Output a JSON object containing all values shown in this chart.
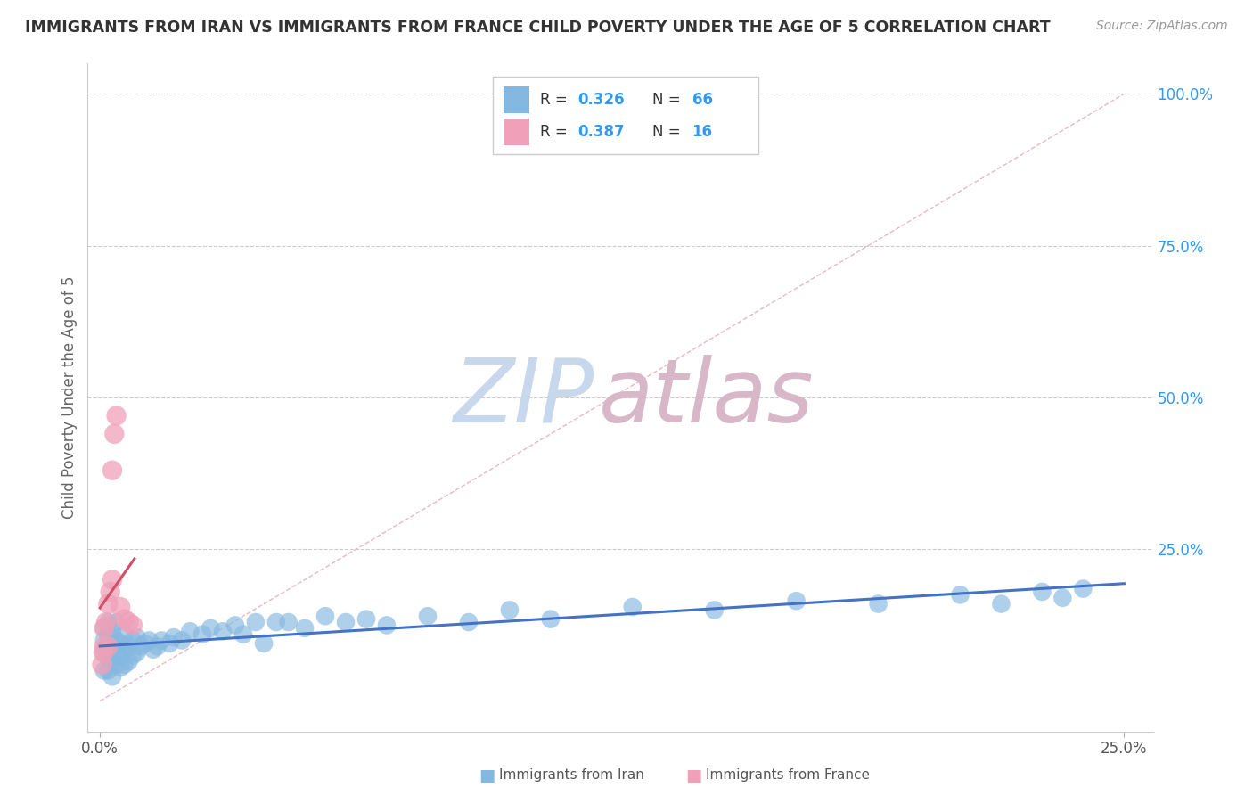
{
  "title": "IMMIGRANTS FROM IRAN VS IMMIGRANTS FROM FRANCE CHILD POVERTY UNDER THE AGE OF 5 CORRELATION CHART",
  "source": "Source: ZipAtlas.com",
  "xlabel_iran": "Immigrants from Iran",
  "xlabel_france": "Immigrants from France",
  "ylabel": "Child Poverty Under the Age of 5",
  "iran_R": 0.326,
  "iran_N": 66,
  "france_R": 0.387,
  "france_N": 16,
  "iran_color": "#85b8e0",
  "france_color": "#f0a0b8",
  "iran_line_color": "#4472c4",
  "france_line_color": "#d0506a",
  "diag_color": "#e8b0bc",
  "watermark_zip_color": "#c8d8ec",
  "watermark_atlas_color": "#d8b8c8",
  "iran_scatter_x": [
    0.001,
    0.001,
    0.001,
    0.001,
    0.002,
    0.002,
    0.002,
    0.002,
    0.002,
    0.003,
    0.003,
    0.003,
    0.003,
    0.004,
    0.004,
    0.004,
    0.004,
    0.005,
    0.005,
    0.005,
    0.006,
    0.006,
    0.006,
    0.007,
    0.007,
    0.008,
    0.008,
    0.009,
    0.009,
    0.01,
    0.011,
    0.012,
    0.013,
    0.014,
    0.015,
    0.017,
    0.018,
    0.02,
    0.022,
    0.025,
    0.027,
    0.03,
    0.033,
    0.035,
    0.038,
    0.04,
    0.043,
    0.046,
    0.05,
    0.055,
    0.06,
    0.065,
    0.07,
    0.08,
    0.09,
    0.1,
    0.11,
    0.13,
    0.15,
    0.17,
    0.19,
    0.21,
    0.22,
    0.23,
    0.235,
    0.24
  ],
  "iran_scatter_y": [
    0.05,
    0.08,
    0.1,
    0.12,
    0.05,
    0.07,
    0.09,
    0.11,
    0.13,
    0.04,
    0.07,
    0.09,
    0.115,
    0.06,
    0.08,
    0.1,
    0.13,
    0.055,
    0.075,
    0.095,
    0.06,
    0.085,
    0.11,
    0.065,
    0.09,
    0.075,
    0.1,
    0.08,
    0.105,
    0.09,
    0.095,
    0.1,
    0.085,
    0.09,
    0.1,
    0.095,
    0.105,
    0.1,
    0.115,
    0.11,
    0.12,
    0.115,
    0.125,
    0.11,
    0.13,
    0.095,
    0.13,
    0.13,
    0.12,
    0.14,
    0.13,
    0.135,
    0.125,
    0.14,
    0.13,
    0.15,
    0.135,
    0.155,
    0.15,
    0.165,
    0.16,
    0.175,
    0.16,
    0.18,
    0.17,
    0.185
  ],
  "france_scatter_x": [
    0.0005,
    0.0008,
    0.001,
    0.001,
    0.0015,
    0.002,
    0.002,
    0.0025,
    0.003,
    0.003,
    0.0035,
    0.004,
    0.005,
    0.006,
    0.007,
    0.008
  ],
  "france_scatter_y": [
    0.06,
    0.08,
    0.09,
    0.12,
    0.13,
    0.09,
    0.16,
    0.18,
    0.2,
    0.38,
    0.44,
    0.47,
    0.155,
    0.135,
    0.13,
    0.125
  ]
}
